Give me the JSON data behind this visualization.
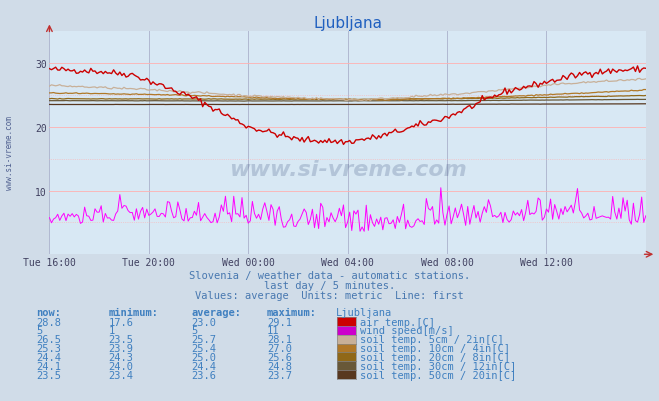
{
  "title": "Ljubljana",
  "bg_color": "#d0dce8",
  "plot_bg_color": "#d8e8f4",
  "grid_color": "#b0b8d0",
  "grid_dotted_color": "#ffb0b0",
  "x_ticks_labels": [
    "Tue 16:00",
    "Tue 20:00",
    "Wed 00:00",
    "Wed 04:00",
    "Wed 08:00",
    "Wed 12:00"
  ],
  "x_ticks_pos": [
    0,
    48,
    96,
    144,
    192,
    240
  ],
  "n_points": 289,
  "ylim": [
    0,
    35
  ],
  "yticks": [
    10,
    20,
    30
  ],
  "subtitle1": "Slovenia / weather data - automatic stations.",
  "subtitle2": "last day / 5 minutes.",
  "subtitle3": "Values: average  Units: metric  Line: first",
  "watermark": "www.si-vreme.com",
  "left_label": "www.si-vreme.com",
  "series": {
    "air_temp": {
      "color": "#cc0000",
      "swatch": "#cc0000",
      "label": "air temp.[C]"
    },
    "wind_speed": {
      "color": "#ff00ff",
      "swatch": "#cc00cc",
      "label": "wind speed[m/s]"
    },
    "soil_5cm": {
      "color": "#c8b098",
      "swatch": "#c8b098",
      "label": "soil temp. 5cm / 2in[C]"
    },
    "soil_10cm": {
      "color": "#b07828",
      "swatch": "#b07828",
      "label": "soil temp. 10cm / 4in[C]"
    },
    "soil_20cm": {
      "color": "#906818",
      "swatch": "#906818",
      "label": "soil temp. 20cm / 8in[C]"
    },
    "soil_30cm": {
      "color": "#685838",
      "swatch": "#685838",
      "label": "soil temp. 30cm / 12in[C]"
    },
    "soil_50cm": {
      "color": "#583820",
      "swatch": "#583820",
      "label": "soil temp. 50cm / 20in[C]"
    }
  },
  "table_headers": [
    "now:",
    "minimum:",
    "average:",
    "maximum:",
    "Ljubljana"
  ],
  "table_rows": [
    {
      "now": "28.8",
      "min": "17.6",
      "avg": "23.0",
      "max": "29.1",
      "series": "air_temp"
    },
    {
      "now": "5",
      "min": "1",
      "avg": "5",
      "max": "11",
      "series": "wind_speed"
    },
    {
      "now": "26.5",
      "min": "23.5",
      "avg": "25.7",
      "max": "28.1",
      "series": "soil_5cm"
    },
    {
      "now": "25.3",
      "min": "23.9",
      "avg": "25.4",
      "max": "27.0",
      "series": "soil_10cm"
    },
    {
      "now": "24.4",
      "min": "24.3",
      "avg": "25.0",
      "max": "25.6",
      "series": "soil_20cm"
    },
    {
      "now": "24.1",
      "min": "24.0",
      "avg": "24.4",
      "max": "24.8",
      "series": "soil_30cm"
    },
    {
      "now": "23.5",
      "min": "23.4",
      "avg": "23.6",
      "max": "23.7",
      "series": "soil_50cm"
    }
  ],
  "table_color": "#4080c0",
  "title_color": "#2060c0"
}
